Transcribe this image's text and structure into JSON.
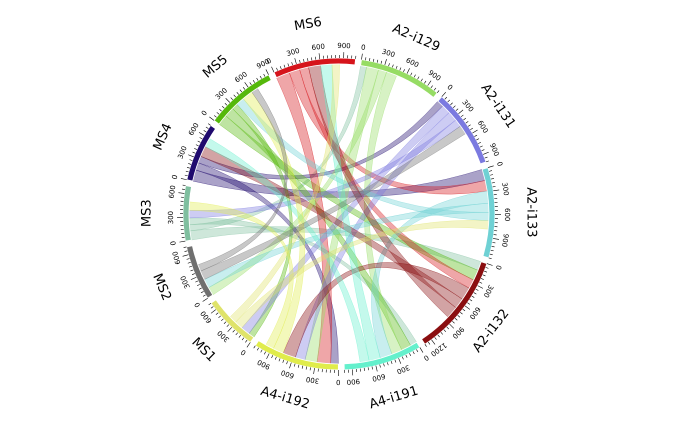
{
  "chart_data": {
    "type": "chord",
    "title": "",
    "sectors": [
      {
        "name": "MS3",
        "size": 700,
        "color": "#7fbf9f",
        "tick_step": 300
      },
      {
        "name": "MS4",
        "size": 750,
        "color": "#1f0a6e",
        "tick_step": 300
      },
      {
        "name": "MS5",
        "size": 900,
        "color": "#55b80b",
        "tick_step": 300
      },
      {
        "name": "MS6",
        "size": 1050,
        "color": "#d6141b",
        "tick_step": 300
      },
      {
        "name": "A2-i129",
        "size": 1050,
        "color": "#96dc64",
        "tick_step": 300
      },
      {
        "name": "A2-i131",
        "size": 1000,
        "color": "#7b7ae0",
        "tick_step": 300
      },
      {
        "name": "A2-i133",
        "size": 1150,
        "color": "#6fd1d4",
        "tick_step": 300
      },
      {
        "name": "A2-i132",
        "size": 1300,
        "color": "#8a0e10",
        "tick_step": 300
      },
      {
        "name": "A4-i191",
        "size": 1000,
        "color": "#64f0cc",
        "tick_step": 300
      },
      {
        "name": "A4-i192",
        "size": 1100,
        "color": "#e0ec4b",
        "tick_step": 300
      },
      {
        "name": "MS1",
        "size": 700,
        "color": "#dfe36a",
        "tick_step": 300
      },
      {
        "name": "MS2",
        "size": 700,
        "color": "#6f6f6f",
        "tick_step": 300
      }
    ],
    "links": [
      {
        "from": "MS3",
        "to": "A2-i132",
        "value": 120
      },
      {
        "from": "MS3",
        "to": "A2-i129",
        "value": 80
      },
      {
        "from": "MS3",
        "to": "A4-i191",
        "value": 90
      },
      {
        "from": "MS4",
        "to": "A2-i133",
        "value": 150
      },
      {
        "from": "MS4",
        "to": "A4-i192",
        "value": 100
      },
      {
        "from": "MS4",
        "to": "A2-i131",
        "value": 90
      },
      {
        "from": "MS5",
        "to": "A2-i132",
        "value": 140
      },
      {
        "from": "MS5",
        "to": "A4-i191",
        "value": 130
      },
      {
        "from": "MS5",
        "to": "MS1",
        "value": 80
      },
      {
        "from": "MS6",
        "to": "A4-i192",
        "value": 180
      },
      {
        "from": "MS6",
        "to": "A2-i133",
        "value": 140
      },
      {
        "from": "MS6",
        "to": "A2-i132",
        "value": 120
      },
      {
        "from": "A2-i129",
        "to": "A4-i192",
        "value": 160
      },
      {
        "from": "A2-i129",
        "to": "MS2",
        "value": 110
      },
      {
        "from": "A2-i129",
        "to": "A4-i191",
        "value": 140
      },
      {
        "from": "A2-i131",
        "to": "MS1",
        "value": 120
      },
      {
        "from": "A2-i131",
        "to": "A4-i192",
        "value": 130
      },
      {
        "from": "A2-i131",
        "to": "MS3",
        "value": 100
      },
      {
        "from": "A2-i133",
        "to": "A4-i191",
        "value": 160
      },
      {
        "from": "A2-i133",
        "to": "MS2",
        "value": 120
      },
      {
        "from": "A2-i133",
        "to": "MS5",
        "value": 110
      },
      {
        "from": "A2-i132",
        "to": "A4-i192",
        "value": 170
      },
      {
        "from": "A2-i132",
        "to": "MS4",
        "value": 140
      },
      {
        "from": "A2-i132",
        "to": "MS6",
        "value": 160
      },
      {
        "from": "A4-i191",
        "to": "MS6",
        "value": 150
      },
      {
        "from": "A4-i191",
        "to": "MS4",
        "value": 120
      },
      {
        "from": "A4-i192",
        "to": "MS5",
        "value": 140
      },
      {
        "from": "A4-i192",
        "to": "MS3",
        "value": 110
      },
      {
        "from": "MS1",
        "to": "A2-i133",
        "value": 110
      },
      {
        "from": "MS1",
        "to": "MS6",
        "value": 100
      },
      {
        "from": "MS2",
        "to": "A2-i131",
        "value": 120
      },
      {
        "from": "MS2",
        "to": "MS5",
        "value": 90
      }
    ],
    "grid": false,
    "legend": "none"
  }
}
